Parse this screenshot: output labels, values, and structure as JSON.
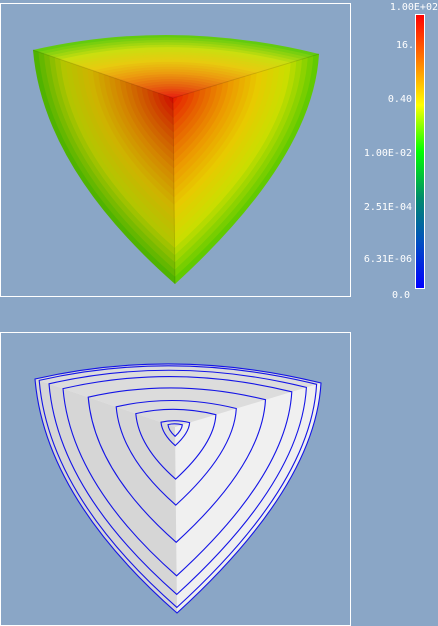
{
  "colors": {
    "background": "#8aa6c6",
    "viewport_border": "#ffffff",
    "contour_line": "#1414e6",
    "shaded_face_light": "#f0f0f0",
    "shaded_face_mid": "#d6d6d6",
    "shaded_face_dark": "#dcdcdc"
  },
  "top_viewport": {
    "label": "contour-fill plot",
    "colormap": [
      "#ff0000",
      "#ff6600",
      "#ffcc00",
      "#ffff00",
      "#80ff00",
      "#00ff00",
      "#008080",
      "#0000ff"
    ]
  },
  "bottom_viewport": {
    "label": "contour-line plot",
    "contour_levels": 9
  },
  "colorbar": {
    "tick_labels": [
      "1.00E+02",
      "16.",
      "0.40",
      "1.00E-02",
      "2.51E-04",
      "6.31E-06",
      "0.0"
    ],
    "gradient_stops": [
      "#ff0000",
      "#ff8000",
      "#ffff00",
      "#00ff00",
      "#008b6b",
      "#0050c0",
      "#0000ff"
    ]
  }
}
